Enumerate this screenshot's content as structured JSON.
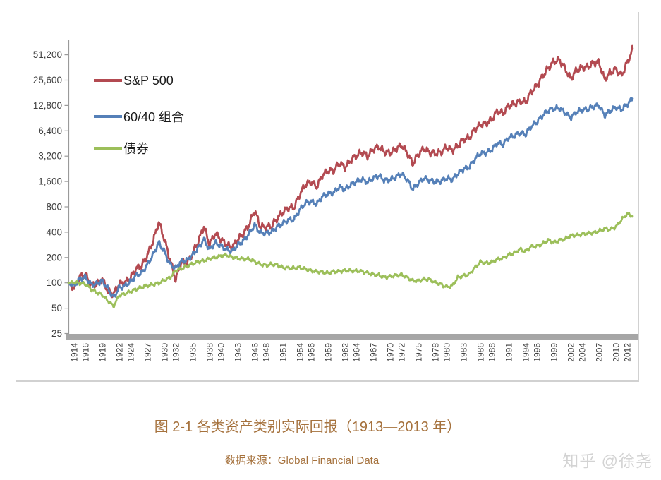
{
  "page": {
    "figure_caption": "图 2-1 各类资产类别实际回报（1913—2013 年）",
    "source": "数据来源：Global Financial Data",
    "watermark": "知乎 @徐尧"
  },
  "colors": {
    "sp500_line": "#b34a51",
    "portfolio_line": "#5580b8",
    "bond_line": "#9cbf5a",
    "caption_text": "#a5713c",
    "axis_text": "#3f3f3f",
    "axis_line": "#9a9a9a",
    "axis_floor_bar": "#a6a6a6",
    "watermark_text": "#d3d3d3",
    "frame_border": "#c8c8c8"
  },
  "chart_data": {
    "type": "line",
    "title": "",
    "xlabel": "",
    "ylabel": "",
    "grid": false,
    "legend_position": "top-left-inside",
    "y_axis": {
      "scale": "log2",
      "range": [
        25,
        51200
      ],
      "tick_values": [
        51200,
        25600,
        12800,
        6400,
        3200,
        1600,
        800,
        400,
        200,
        100,
        50,
        25
      ],
      "tick_labels": [
        "51,200",
        "25,600",
        "12,800",
        "6,400",
        "3,200",
        "1,600",
        "800",
        "400",
        "200",
        "100",
        "50",
        "25"
      ]
    },
    "x_axis": {
      "start_year": 1913,
      "end_year": 2013,
      "tick_labels": [
        "1914",
        "1916",
        "1919",
        "1922",
        "1924",
        "1927",
        "1930",
        "1932",
        "1935",
        "1938",
        "1940",
        "1943",
        "1946",
        "1948",
        "1951",
        "1954",
        "1956",
        "1959",
        "1962",
        "1964",
        "1967",
        "1970",
        "1972",
        "1975",
        "1978",
        "1980",
        "1983",
        "1986",
        "1988",
        "1991",
        "1994",
        "1996",
        "1999",
        "2002",
        "2004",
        "2007",
        "2010",
        "2012"
      ]
    },
    "series": [
      {
        "name": "S&P 500",
        "color": "#b34a51",
        "start_year": 1913,
        "values": [
          100,
          86,
          118,
          126,
          94,
          96,
          110,
          80,
          74,
          98,
          100,
          116,
          148,
          160,
          215,
          310,
          530,
          330,
          190,
          108,
          175,
          170,
          225,
          310,
          465,
          285,
          390,
          330,
          285,
          262,
          330,
          385,
          490,
          730,
          465,
          460,
          475,
          590,
          690,
          780,
          790,
          1130,
          1480,
          1570,
          1380,
          1900,
          2150,
          2150,
          2650,
          2350,
          2850,
          3250,
          3550,
          3200,
          3850,
          4150,
          3600,
          3500,
          3850,
          4350,
          3550,
          2600,
          3350,
          3950,
          3550,
          3450,
          3550,
          4100,
          3750,
          4250,
          5050,
          5250,
          6600,
          7600,
          7800,
          8700,
          11000,
          10300,
          12800,
          13400,
          14300,
          14000,
          18500,
          22000,
          28500,
          35500,
          42500,
          44500,
          35500,
          26500,
          33500,
          36000,
          36800,
          41000,
          42000,
          26000,
          31500,
          34500,
          29000,
          41000,
          60000
        ]
      },
      {
        "name": "60/40 组合",
        "color": "#5580b8",
        "start_year": 1913,
        "values": [
          100,
          92,
          111,
          117,
          96,
          97,
          106,
          85,
          67,
          88,
          92,
          103,
          122,
          132,
          165,
          215,
          300,
          235,
          165,
          150,
          180,
          185,
          215,
          260,
          330,
          245,
          300,
          275,
          250,
          238,
          280,
          315,
          385,
          490,
          390,
          390,
          405,
          465,
          510,
          560,
          570,
          740,
          890,
          930,
          860,
          1060,
          1150,
          1180,
          1380,
          1280,
          1450,
          1600,
          1700,
          1560,
          1750,
          1880,
          1650,
          1680,
          1800,
          1980,
          1700,
          1300,
          1520,
          1750,
          1650,
          1600,
          1620,
          1750,
          1680,
          1980,
          2250,
          2350,
          2950,
          3450,
          3500,
          3800,
          4600,
          4400,
          5300,
          5600,
          6100,
          5800,
          7200,
          8100,
          9700,
          11200,
          11700,
          11900,
          10500,
          9200,
          10700,
          11300,
          11500,
          12400,
          12900,
          9800,
          11000,
          12200,
          11500,
          13200,
          15500
        ]
      },
      {
        "name": "债券",
        "color": "#9cbf5a",
        "start_year": 1913,
        "values": [
          100,
          101,
          99,
          97,
          84,
          77,
          72,
          61,
          53,
          71,
          74,
          79,
          84,
          89,
          93,
          96,
          99,
          108,
          115,
          140,
          148,
          158,
          168,
          178,
          184,
          194,
          200,
          208,
          215,
          202,
          196,
          192,
          192,
          180,
          166,
          161,
          166,
          163,
          152,
          150,
          150,
          152,
          146,
          139,
          136,
          134,
          131,
          136,
          137,
          140,
          139,
          139,
          137,
          131,
          126,
          123,
          116,
          119,
          123,
          125,
          116,
          106,
          106,
          111,
          109,
          101,
          96,
          89,
          92,
          116,
          121,
          126,
          151,
          177,
          171,
          176,
          191,
          196,
          216,
          226,
          251,
          236,
          271,
          271,
          291,
          322,
          301,
          322,
          332,
          362,
          367,
          377,
          387,
          392,
          412,
          442,
          432,
          462,
          560,
          660,
          620
        ]
      }
    ]
  }
}
